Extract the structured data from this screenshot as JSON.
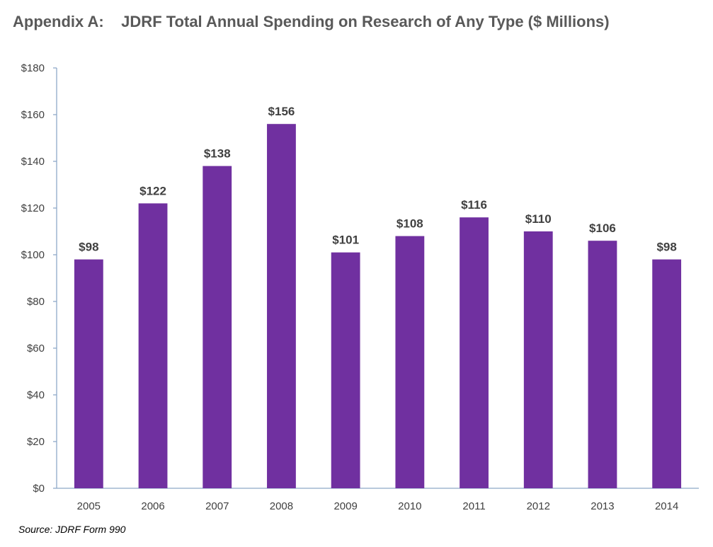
{
  "chart_data": {
    "type": "bar",
    "title": "Appendix A:    JDRF Total Annual Spending on Research of Any Type ($ Millions)",
    "categories": [
      "2005",
      "2006",
      "2007",
      "2008",
      "2009",
      "2010",
      "2011",
      "2012",
      "2013",
      "2014"
    ],
    "values": [
      98,
      122,
      138,
      156,
      101,
      108,
      116,
      110,
      106,
      98
    ],
    "data_labels": [
      "$98",
      "$122",
      "$138",
      "$156",
      "$101",
      "$108",
      "$116",
      "$110",
      "$106",
      "$98"
    ],
    "xlabel": "",
    "ylabel": "",
    "ylim": [
      0,
      180
    ],
    "yticks": [
      0,
      20,
      40,
      60,
      80,
      100,
      120,
      140,
      160,
      180
    ],
    "ytick_labels": [
      "$0",
      "$20",
      "$40",
      "$60",
      "$80",
      "$100",
      "$120",
      "$140",
      "$160",
      "$180"
    ],
    "grid": false,
    "legend": "none",
    "bar_color": "#7030A0",
    "axis_color": "#8EA9C8",
    "source": "Source:  JDRF Form 990"
  }
}
